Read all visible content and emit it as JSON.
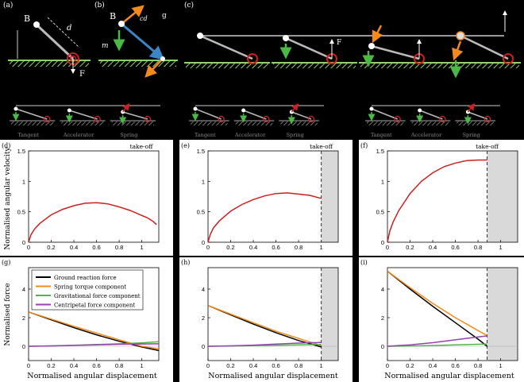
{
  "panel_labels": [
    "(a)",
    "(b)",
    "(c)",
    "(d)",
    "(e)",
    "(f)",
    "(g)",
    "(h)",
    "(i)"
  ],
  "colors": {
    "background": "#000000",
    "plot_bg": "#ffffff",
    "red": "#cc1f1f",
    "orange": "#f28a1c",
    "green": "#4cb848",
    "purple": "#9b3fb3",
    "blue": "#3a86c8",
    "ground": "#8ed16a",
    "takeoff_shade": "#d9d9d9"
  },
  "diagram_labels": {
    "a_B": "B",
    "a_d": "d",
    "a_F": "F",
    "b_B": "B",
    "b_m": "m",
    "b_g": "g",
    "b_cd": "cd",
    "c_F": "F"
  },
  "small_labels": {
    "left": [
      "Tangent",
      "Accelerator",
      "Spring"
    ],
    "middle": [
      "Tangent",
      "Accelerator",
      "Spring"
    ],
    "right": [
      "Tangent",
      "Accelerator",
      "Spring"
    ]
  },
  "takeoff_label": "take-off",
  "ylabel_top": "Normalised angular velocity",
  "ylabel_bottom": "Normalised force",
  "xlabel": "Normalised angular displacement",
  "legend": [
    {
      "label": "Ground reaction force",
      "color": "#000000"
    },
    {
      "label": "Spring torque component",
      "color": "#f28a1c"
    },
    {
      "label": "Gravitational force component",
      "color": "#4cb848"
    },
    {
      "label": "Centripetal force component",
      "color": "#9b3fb3"
    }
  ],
  "chart_data": [
    {
      "type": "line",
      "panel": "(d)",
      "xlim": [
        0,
        1.15
      ],
      "ylim": [
        0,
        1.5
      ],
      "xticks": [
        0,
        0.2,
        0.4,
        0.6,
        0.8,
        1
      ],
      "yticks": [
        0,
        0.5,
        1,
        1.5
      ],
      "takeoff": null,
      "series": [
        {
          "color": "red",
          "x": [
            0,
            0.02,
            0.05,
            0.1,
            0.2,
            0.3,
            0.4,
            0.5,
            0.6,
            0.7,
            0.8,
            0.9,
            1.0,
            1.05,
            1.1,
            1.13
          ],
          "y": [
            0,
            0.12,
            0.21,
            0.31,
            0.45,
            0.54,
            0.6,
            0.64,
            0.65,
            0.63,
            0.58,
            0.52,
            0.44,
            0.4,
            0.34,
            0.29
          ]
        }
      ]
    },
    {
      "type": "line",
      "panel": "(e)",
      "xlim": [
        0,
        1.15
      ],
      "ylim": [
        0,
        1.5
      ],
      "xticks": [
        0,
        0.2,
        0.4,
        0.6,
        0.8,
        1
      ],
      "yticks": [
        0,
        0.5,
        1,
        1.5
      ],
      "takeoff": 1.0,
      "series": [
        {
          "color": "red",
          "x": [
            0,
            0.02,
            0.05,
            0.1,
            0.2,
            0.3,
            0.4,
            0.5,
            0.6,
            0.7,
            0.8,
            0.9,
            1.0
          ],
          "y": [
            0,
            0.13,
            0.24,
            0.35,
            0.51,
            0.62,
            0.7,
            0.76,
            0.8,
            0.81,
            0.79,
            0.77,
            0.72
          ]
        }
      ]
    },
    {
      "type": "line",
      "panel": "(f)",
      "xlim": [
        0,
        1.15
      ],
      "ylim": [
        0,
        1.5
      ],
      "xticks": [
        0,
        0.2,
        0.4,
        0.6,
        0.8,
        1
      ],
      "yticks": [
        0,
        0.5,
        1,
        1.5
      ],
      "takeoff": 0.88,
      "series": [
        {
          "color": "red",
          "x": [
            0,
            0.02,
            0.05,
            0.1,
            0.2,
            0.3,
            0.4,
            0.5,
            0.6,
            0.7,
            0.8,
            0.88
          ],
          "y": [
            0,
            0.18,
            0.33,
            0.52,
            0.8,
            1.0,
            1.14,
            1.24,
            1.3,
            1.34,
            1.35,
            1.35
          ]
        }
      ]
    },
    {
      "type": "line",
      "panel": "(g)",
      "xlim": [
        0,
        1.15
      ],
      "ylim": [
        -1,
        5.5
      ],
      "xticks": [
        0,
        0.2,
        0.4,
        0.6,
        0.8,
        1
      ],
      "yticks": [
        0,
        2,
        4
      ],
      "takeoff": null,
      "series": [
        {
          "name": "Ground reaction force",
          "color": "black",
          "x": [
            0,
            0.2,
            0.4,
            0.6,
            0.8,
            1.0,
            1.15
          ],
          "y": [
            2.4,
            1.85,
            1.3,
            0.8,
            0.35,
            -0.05,
            -0.3
          ]
        },
        {
          "name": "Spring torque component",
          "color": "orange",
          "x": [
            0,
            0.2,
            0.4,
            0.6,
            0.8,
            1.0,
            1.15
          ],
          "y": [
            2.4,
            1.9,
            1.4,
            0.92,
            0.45,
            0.0,
            -0.18
          ]
        },
        {
          "name": "Gravitational force component",
          "color": "green",
          "x": [
            0,
            0.2,
            0.4,
            0.6,
            0.8,
            1.0,
            1.15
          ],
          "y": [
            0,
            0.03,
            0.07,
            0.12,
            0.17,
            0.24,
            0.32
          ]
        },
        {
          "name": "Centripetal force component",
          "color": "purple",
          "x": [
            0,
            0.2,
            0.4,
            0.6,
            0.8,
            1.0,
            1.15
          ],
          "y": [
            0,
            0.02,
            0.06,
            0.1,
            0.14,
            0.16,
            0.17
          ]
        }
      ]
    },
    {
      "type": "line",
      "panel": "(h)",
      "xlim": [
        0,
        1.15
      ],
      "ylim": [
        -1,
        5.5
      ],
      "xticks": [
        0,
        0.2,
        0.4,
        0.6,
        0.8,
        1
      ],
      "yticks": [
        0,
        2,
        4
      ],
      "takeoff": 1.0,
      "series": [
        {
          "color": "black",
          "x": [
            0,
            0.2,
            0.4,
            0.6,
            0.8,
            1.0
          ],
          "y": [
            2.85,
            2.2,
            1.55,
            0.95,
            0.4,
            -0.05
          ]
        },
        {
          "color": "orange",
          "x": [
            0,
            0.2,
            0.4,
            0.6,
            0.8,
            1.0
          ],
          "y": [
            2.85,
            2.25,
            1.65,
            1.05,
            0.55,
            0.05
          ]
        },
        {
          "color": "green",
          "x": [
            0,
            0.2,
            0.4,
            0.6,
            0.8,
            1.0
          ],
          "y": [
            0,
            0.02,
            0.04,
            0.07,
            0.1,
            0.12
          ]
        },
        {
          "color": "purple",
          "x": [
            0,
            0.2,
            0.4,
            0.6,
            0.8,
            1.0
          ],
          "y": [
            0,
            0.03,
            0.08,
            0.15,
            0.22,
            0.26
          ]
        }
      ]
    },
    {
      "type": "line",
      "panel": "(i)",
      "xlim": [
        0,
        1.15
      ],
      "ylim": [
        -1,
        5.5
      ],
      "xticks": [
        0,
        0.2,
        0.4,
        0.6,
        0.8,
        1
      ],
      "yticks": [
        0,
        2,
        4
      ],
      "takeoff": 0.88,
      "series": [
        {
          "color": "black",
          "x": [
            0,
            0.2,
            0.4,
            0.6,
            0.8,
            0.88
          ],
          "y": [
            5.25,
            4.0,
            2.8,
            1.65,
            0.5,
            0.0
          ]
        },
        {
          "color": "orange",
          "x": [
            0,
            0.2,
            0.4,
            0.6,
            0.8,
            0.88
          ],
          "y": [
            5.25,
            4.1,
            3.0,
            2.0,
            1.1,
            0.75
          ]
        },
        {
          "color": "green",
          "x": [
            0,
            0.2,
            0.4,
            0.6,
            0.8,
            0.88
          ],
          "y": [
            0,
            0.02,
            0.05,
            0.1,
            0.14,
            0.16
          ]
        },
        {
          "color": "purple",
          "x": [
            0,
            0.2,
            0.4,
            0.6,
            0.8,
            0.88
          ],
          "y": [
            0,
            0.1,
            0.25,
            0.45,
            0.65,
            0.72
          ]
        }
      ]
    }
  ]
}
